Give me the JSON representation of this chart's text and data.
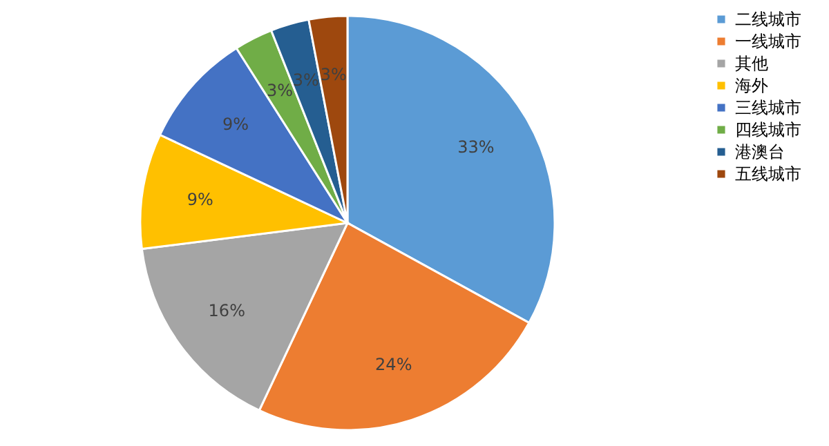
{
  "chart_data": {
    "type": "pie",
    "categories": [
      "二线城市",
      "一线城市",
      "其他",
      "海外",
      "三线城市",
      "四线城市",
      "港澳台",
      "五线城市"
    ],
    "values": [
      33,
      24,
      16,
      9,
      9,
      3,
      3,
      3
    ],
    "colors": [
      "#5b9bd5",
      "#ed7d31",
      "#a5a5a5",
      "#ffc000",
      "#4472c4",
      "#70ad47",
      "#255e91",
      "#9e480e"
    ],
    "value_labels": [
      "33%",
      "24%",
      "16%",
      "9%",
      "9%",
      "3%",
      "3%",
      "3%"
    ],
    "legend": "right"
  }
}
